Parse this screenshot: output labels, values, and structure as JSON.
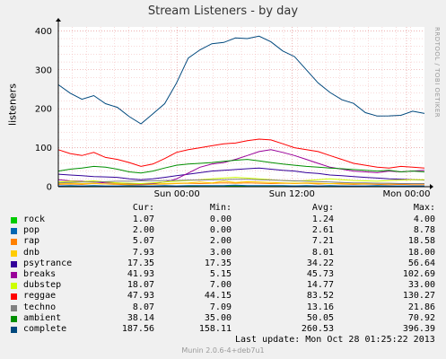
{
  "chart_data": {
    "type": "line",
    "title": "Stream Listeners - by day",
    "ylabel": "listeners",
    "ylim": [
      0,
      410
    ],
    "yticks": [
      0,
      100,
      200,
      300,
      400
    ],
    "xticks": [
      {
        "label": "Sun 00:00",
        "t": 0.324
      },
      {
        "label": "Sun 12:00",
        "t": 0.638
      },
      {
        "label": "Mon 00:00",
        "t": 0.951
      }
    ],
    "grid": true,
    "series": [
      {
        "name": "rock",
        "color": "#00cc00",
        "values": [
          1,
          1,
          2,
          1,
          1,
          1,
          1,
          2,
          1,
          1,
          1,
          2,
          1,
          1,
          1,
          2,
          1,
          1,
          1,
          1,
          2,
          1,
          1,
          1,
          2,
          1,
          1,
          1,
          1,
          1,
          1,
          1
        ]
      },
      {
        "name": "pop",
        "color": "#0066b3",
        "values": [
          2,
          3,
          2,
          3,
          2,
          2,
          3,
          2,
          2,
          3,
          2,
          3,
          3,
          3,
          3,
          4,
          3,
          3,
          3,
          3,
          2,
          3,
          2,
          3,
          2,
          2,
          2,
          3,
          2,
          2,
          2,
          2
        ]
      },
      {
        "name": "rap",
        "color": "#ff8000",
        "values": [
          6,
          7,
          6,
          8,
          7,
          6,
          5,
          5,
          6,
          7,
          8,
          9,
          8,
          9,
          10,
          9,
          10,
          9,
          8,
          9,
          8,
          9,
          7,
          8,
          7,
          6,
          7,
          6,
          5,
          6,
          5,
          5
        ]
      },
      {
        "name": "dnb",
        "color": "#ffcc00",
        "values": [
          8,
          9,
          8,
          9,
          7,
          8,
          7,
          6,
          7,
          8,
          9,
          10,
          12,
          10,
          14,
          11,
          13,
          12,
          11,
          10,
          9,
          10,
          9,
          8,
          9,
          8,
          8,
          9,
          8,
          8,
          8,
          8
        ]
      },
      {
        "name": "psytrance",
        "color": "#330099",
        "values": [
          32,
          30,
          28,
          26,
          25,
          24,
          20,
          18,
          20,
          24,
          28,
          32,
          36,
          40,
          42,
          44,
          46,
          48,
          45,
          42,
          40,
          36,
          34,
          30,
          28,
          26,
          24,
          22,
          20,
          19,
          18,
          17
        ]
      },
      {
        "name": "breaks",
        "color": "#990099",
        "values": [
          18,
          15,
          14,
          12,
          10,
          10,
          8,
          7,
          8,
          12,
          20,
          35,
          50,
          58,
          62,
          70,
          80,
          90,
          95,
          88,
          80,
          70,
          60,
          50,
          45,
          40,
          38,
          36,
          40,
          38,
          40,
          42
        ]
      },
      {
        "name": "dubstep",
        "color": "#ccff00",
        "values": [
          12,
          14,
          13,
          15,
          12,
          10,
          9,
          8,
          10,
          12,
          14,
          16,
          18,
          20,
          22,
          24,
          22,
          20,
          18,
          16,
          14,
          16,
          18,
          20,
          18,
          16,
          15,
          14,
          16,
          17,
          18,
          18
        ]
      },
      {
        "name": "reggae",
        "color": "#ff0000",
        "values": [
          95,
          85,
          80,
          88,
          75,
          70,
          62,
          52,
          58,
          72,
          88,
          95,
          100,
          105,
          110,
          112,
          118,
          122,
          120,
          110,
          100,
          95,
          90,
          80,
          70,
          60,
          55,
          50,
          48,
          52,
          50,
          48
        ]
      },
      {
        "name": "techno",
        "color": "#808080",
        "values": [
          10,
          11,
          12,
          12,
          13,
          14,
          14,
          15,
          15,
          16,
          16,
          17,
          17,
          18,
          18,
          19,
          19,
          18,
          17,
          16,
          15,
          14,
          13,
          12,
          11,
          10,
          10,
          9,
          9,
          8,
          8,
          8
        ]
      },
      {
        "name": "ambient",
        "color": "#008f00",
        "values": [
          40,
          45,
          48,
          52,
          50,
          45,
          38,
          35,
          40,
          48,
          55,
          58,
          60,
          62,
          65,
          68,
          70,
          66,
          62,
          58,
          55,
          52,
          50,
          48,
          46,
          44,
          42,
          40,
          42,
          38,
          40,
          38
        ]
      },
      {
        "name": "complete",
        "color": "#00487d",
        "values": [
          258,
          240,
          228,
          232,
          215,
          200,
          180,
          165,
          185,
          215,
          262,
          330,
          355,
          365,
          372,
          378,
          380,
          390,
          370,
          350,
          330,
          300,
          270,
          240,
          225,
          210,
          190,
          185,
          180,
          185,
          190,
          188
        ]
      }
    ]
  },
  "legend": {
    "headers": {
      "cur": "Cur:",
      "min": "Min:",
      "avg": "Avg:",
      "max": "Max:"
    },
    "rows": [
      {
        "name": "rock",
        "color": "#00cc00",
        "cur": "1.07",
        "min": "0.00",
        "avg": "1.24",
        "max": "4.00"
      },
      {
        "name": "pop",
        "color": "#0066b3",
        "cur": "2.00",
        "min": "0.00",
        "avg": "2.61",
        "max": "8.78"
      },
      {
        "name": "rap",
        "color": "#ff8000",
        "cur": "5.07",
        "min": "2.00",
        "avg": "7.21",
        "max": "18.58"
      },
      {
        "name": "dnb",
        "color": "#ffcc00",
        "cur": "7.93",
        "min": "3.00",
        "avg": "8.01",
        "max": "18.00"
      },
      {
        "name": "psytrance",
        "color": "#330099",
        "cur": "17.35",
        "min": "17.35",
        "avg": "34.22",
        "max": "56.64"
      },
      {
        "name": "breaks",
        "color": "#990099",
        "cur": "41.93",
        "min": "5.15",
        "avg": "45.73",
        "max": "102.69"
      },
      {
        "name": "dubstep",
        "color": "#ccff00",
        "cur": "18.07",
        "min": "7.00",
        "avg": "14.77",
        "max": "33.00"
      },
      {
        "name": "reggae",
        "color": "#ff0000",
        "cur": "47.93",
        "min": "44.15",
        "avg": "83.52",
        "max": "130.27"
      },
      {
        "name": "techno",
        "color": "#808080",
        "cur": "8.07",
        "min": "7.09",
        "avg": "13.16",
        "max": "21.86"
      },
      {
        "name": "ambient",
        "color": "#008f00",
        "cur": "38.14",
        "min": "35.00",
        "avg": "50.05",
        "max": "70.92"
      },
      {
        "name": "complete",
        "color": "#00487d",
        "cur": "187.56",
        "min": "158.11",
        "avg": "260.53",
        "max": "396.39"
      }
    ]
  },
  "footer": {
    "last_update": "Last update:  Mon Oct 28 01:25:22 2013",
    "version": "Munin 2.0.6-4+deb7u1"
  },
  "watermark": "RRDTOOL / TOBI OETIKER"
}
